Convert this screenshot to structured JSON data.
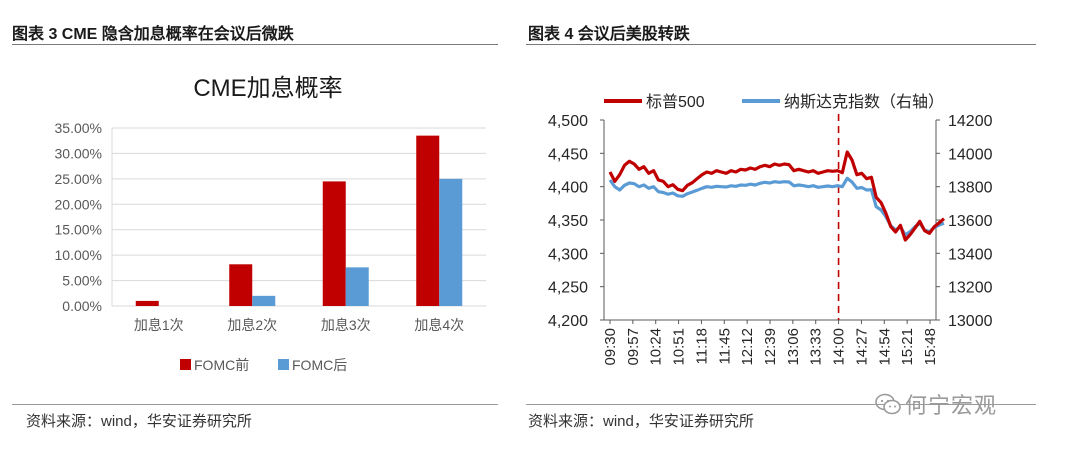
{
  "left_panel": {
    "title": "图表 3 CME 隐含加息概率在会议后微跌",
    "source": "资料来源：wind，华安证券研究所"
  },
  "right_panel": {
    "title": "图表 4  会议后美股转跌",
    "source": "资料来源：wind，华安证券研究所"
  },
  "watermark": "何宁宏观",
  "chart_data": [
    {
      "type": "bar",
      "title": "CME加息概率",
      "categories": [
        "加息1次",
        "加息2次",
        "加息3次",
        "加息4次"
      ],
      "series": [
        {
          "name": "FOMC前",
          "color": "#c00000",
          "values": [
            1.0,
            8.2,
            24.5,
            33.5
          ]
        },
        {
          "name": "FOMC后",
          "color": "#5b9bd5",
          "values": [
            0.0,
            2.0,
            7.6,
            25.0
          ]
        }
      ],
      "yticks": [
        "0.00%",
        "5.00%",
        "10.00%",
        "15.00%",
        "20.00%",
        "25.00%",
        "30.00%",
        "35.00%"
      ],
      "ylim": [
        0,
        35
      ],
      "legend_position": "bottom"
    },
    {
      "type": "line",
      "x_ticks": [
        "09:30",
        "09:57",
        "10:24",
        "10:51",
        "11:18",
        "11:45",
        "12:12",
        "12:39",
        "13:06",
        "13:33",
        "14:00",
        "14:27",
        "14:54",
        "15:21",
        "15:48"
      ],
      "series": [
        {
          "name": "标普500",
          "color": "#c00000",
          "axis": "left",
          "values": [
            4422,
            4408,
            4418,
            4432,
            4438,
            4434,
            4426,
            4430,
            4420,
            4424,
            4410,
            4408,
            4400,
            4403,
            4396,
            4394,
            4402,
            4406,
            4412,
            4418,
            4422,
            4420,
            4424,
            4422,
            4420,
            4424,
            4422,
            4426,
            4425,
            4428,
            4426,
            4430,
            4432,
            4430,
            4434,
            4432,
            4434,
            4433,
            4424,
            4426,
            4424,
            4422,
            4424,
            4420,
            4422,
            4424,
            4423,
            4424,
            4421,
            4452,
            4440,
            4418,
            4420,
            4412,
            4414,
            4384,
            4376,
            4360,
            4340,
            4332,
            4342,
            4320,
            4328,
            4338,
            4348,
            4334,
            4330,
            4340,
            4346,
            4352
          ]
        },
        {
          "name": "纳斯达克指数（右轴）",
          "color": "#5b9bd5",
          "axis": "right",
          "values": [
            13840,
            13800,
            13780,
            13808,
            13822,
            13818,
            13800,
            13810,
            13790,
            13800,
            13770,
            13765,
            13755,
            13762,
            13745,
            13742,
            13758,
            13768,
            13778,
            13790,
            13800,
            13796,
            13802,
            13800,
            13798,
            13805,
            13802,
            13810,
            13808,
            13815,
            13810,
            13820,
            13826,
            13822,
            13830,
            13826,
            13830,
            13828,
            13805,
            13810,
            13806,
            13800,
            13806,
            13796,
            13800,
            13804,
            13800,
            13806,
            13800,
            13850,
            13828,
            13790,
            13795,
            13780,
            13782,
            13680,
            13660,
            13620,
            13565,
            13540,
            13560,
            13510,
            13530,
            13560,
            13580,
            13540,
            13530,
            13555,
            13570,
            13580
          ]
        }
      ],
      "y_left": {
        "ticks": [
          "4,500",
          "4,450",
          "4,400",
          "4,350",
          "4,300",
          "4,250",
          "4,200"
        ],
        "range": [
          4200,
          4500
        ]
      },
      "y_right": {
        "ticks": [
          "14200",
          "14000",
          "13800",
          "13600",
          "13400",
          "13200",
          "13000"
        ],
        "range": [
          13000,
          14200
        ]
      },
      "marker_at": "14:00",
      "legend_position": "top"
    }
  ]
}
